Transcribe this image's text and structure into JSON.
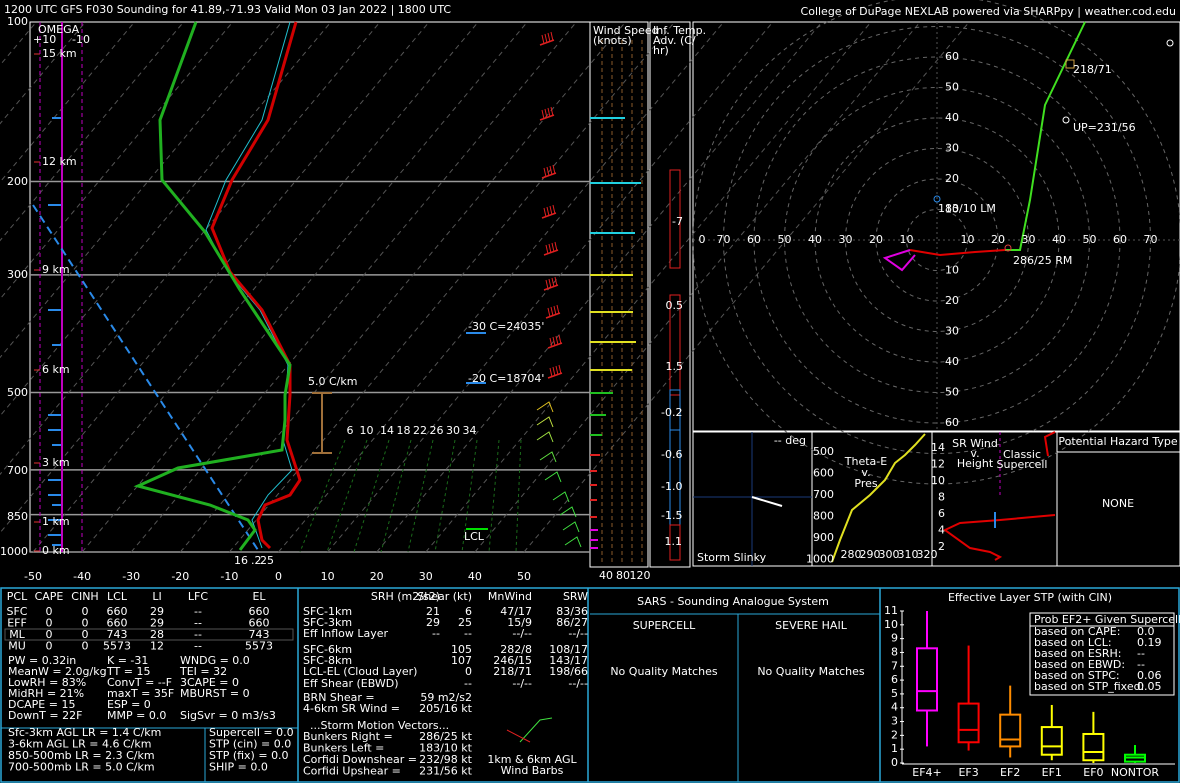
{
  "header": {
    "title": "1200 UTC GFS F030 Sounding for 41.89,-71.93 Valid  Mon 03 Jan 2022 | 1800 UTC",
    "credit": "College of DuPage NEXLAB powered via SHARPpy | weather.cod.edu"
  },
  "skewt": {
    "pressure_labels": [
      "100",
      "200",
      "300",
      "500",
      "700",
      "850",
      "1000"
    ],
    "temperature_labels": [
      "-50",
      "-40",
      "-30",
      "-20",
      "-10",
      "0",
      "10",
      "20",
      "30",
      "40",
      "50"
    ],
    "height_labels": [
      "15 km",
      "12 km",
      "9 km",
      "6 km",
      "3 km",
      "1 km",
      "0 km"
    ],
    "omega_title": "OMEGA",
    "omega_labels": [
      "+10",
      "-10"
    ],
    "lapse_rate": "5.0 C/km",
    "isotherms": [
      "-30 C=24035'",
      "-20 C=18704'"
    ],
    "mixing_ratios": [
      "6",
      "10",
      "14",
      "18",
      "22",
      "26",
      "30",
      "34"
    ],
    "lcl": "LCL",
    "surface": [
      "16",
      ".2",
      "25"
    ]
  },
  "wind_speed": {
    "title": [
      "Wind Speed",
      "(knots)"
    ],
    "ticks": [
      "40",
      "80",
      "120"
    ]
  },
  "temp_adv": {
    "title": [
      "Inf. Temp.",
      "Adv. (C/",
      "hr)"
    ],
    "labels": [
      "-7",
      "0.5",
      "1.5",
      "-0.2",
      "-0.6",
      "-1.0",
      "-1.5",
      "1.1"
    ]
  },
  "hodograph": {
    "x_labels": [
      "0",
      "70",
      "60",
      "50",
      "40",
      "30",
      "20",
      "10",
      "10",
      "20",
      "30",
      "40",
      "50",
      "60",
      "70"
    ],
    "y_labels": [
      "60",
      "50",
      "40",
      "30",
      "20",
      "10",
      "10",
      "20",
      "30",
      "40",
      "50",
      "60"
    ],
    "mean": "218/71",
    "upshear": "UP=231/56",
    "left_mover": "183/10 LM",
    "right_mover": "286/25 RM"
  },
  "slinky": {
    "deg": "-- deg",
    "title": "Storm Slinky"
  },
  "theta_e": {
    "title": [
      "Theta-E",
      "v.",
      "Pres"
    ],
    "y_labels": [
      "500",
      "600",
      "700",
      "800",
      "900",
      "1000"
    ],
    "x_labels": [
      "280",
      "290",
      "300",
      "310",
      "320"
    ]
  },
  "sr_wind": {
    "title": [
      "SR Wind",
      "v.",
      "Height"
    ],
    "note": [
      "Classic",
      "Supercell"
    ],
    "y_labels": [
      "14",
      "12",
      "10",
      "8",
      "6",
      "4",
      "2"
    ]
  },
  "hazard": {
    "title": "Potential Hazard Type",
    "value": "NONE"
  },
  "parcels": {
    "columns": [
      "PCL",
      "CAPE",
      "CINH",
      "LCL",
      "LI",
      "LFC",
      "EL"
    ],
    "rows": [
      [
        "SFC",
        "0",
        "0",
        "660",
        "29",
        "--",
        "660"
      ],
      [
        "EFF",
        "0",
        "0",
        "660",
        "29",
        "--",
        "660"
      ],
      [
        "ML",
        "0",
        "0",
        "743",
        "28",
        "--",
        "743"
      ],
      [
        "MU",
        "0",
        "0",
        "5573",
        "12",
        "--",
        "5573"
      ]
    ]
  },
  "indices": {
    "col1": [
      "PW = 0.32in",
      "MeanW = 2.0g/kg",
      "LowRH = 83%",
      "MidRH = 21%",
      "DCAPE = 15",
      "DownT = 22F"
    ],
    "col2": [
      "K = -31",
      "TT = 15",
      "ConvT = --F",
      "maxT = 35F",
      "ESP = 0",
      "MMP = 0.0"
    ],
    "col3": [
      "WNDG = 0.0",
      "TEI = 32",
      "3CAPE = 0",
      "MBURST = 0",
      "SigSvr = 0 m3/s3"
    ],
    "lapse_rates": [
      "Sfc-3km AGL LR = 1.4 C/km",
      "3-6km AGL LR = 4.6 C/km",
      "850-500mb LR = 2.3 C/km",
      "700-500mb LR = 5.0 C/km"
    ],
    "composites": [
      "Supercell = 0.0",
      "STP (cin) = 0.0",
      "STP (fix) = 0.0",
      "SHIP = 0.0"
    ]
  },
  "kinematics": {
    "columns": [
      "SRH (m2/s2)",
      "Shear (kt)",
      "MnWind",
      "SRW"
    ],
    "rows": [
      [
        "SFC-1km",
        "21",
        "6",
        "47/17",
        "83/36"
      ],
      [
        "SFC-3km",
        "29",
        "25",
        "15/9",
        "86/27"
      ],
      [
        "Eff Inflow Layer",
        "--",
        "--",
        "--/--",
        "--/--"
      ],
      [
        "SFC-6km",
        "105",
        "282/8",
        "108/17"
      ],
      [
        "SFC-8km",
        "107",
        "246/15",
        "143/17"
      ],
      [
        "LCL-EL (Cloud Layer)",
        "0",
        "218/71",
        "198/66"
      ],
      [
        "Eff Shear (EBWD)",
        "--",
        "--/--",
        "--/--"
      ]
    ],
    "extra": [
      [
        "BRN Shear =",
        "59 m2/s2"
      ],
      [
        "4-6km SR Wind =",
        "205/16 kt"
      ]
    ],
    "motion_title": "...Storm Motion Vectors...",
    "motion": [
      [
        "Bunkers Right =",
        "286/25 kt"
      ],
      [
        "Bunkers Left =",
        "183/10 kt"
      ],
      [
        "Corfidi Downshear =",
        "232/98 kt"
      ],
      [
        "Corfidi Upshear =",
        "231/56 kt"
      ]
    ],
    "barbs_label": [
      "1km & 6km AGL",
      "Wind Barbs"
    ]
  },
  "sars": {
    "title": "SARS - Sounding Analogue System",
    "supercell": "SUPERCELL",
    "hail": "SEVERE HAIL",
    "supercell_result": "No Quality Matches",
    "hail_result": "No Quality Matches"
  },
  "stp": {
    "title": "Effective Layer STP (with CIN)",
    "ylim": [
      0,
      11
    ],
    "yticks": [
      0,
      1,
      2,
      3,
      4,
      5,
      6,
      7,
      8,
      9,
      10,
      11
    ],
    "categories": [
      "EF4+",
      "EF3",
      "EF2",
      "EF1",
      "EF0",
      "NONTOR"
    ],
    "colors": [
      "#ff00ff",
      "#ff0000",
      "#ff8c00",
      "#ffff00",
      "#ffff00",
      "#00ff00"
    ],
    "boxes": [
      {
        "min": 1.2,
        "q1": 3.8,
        "median": 5.2,
        "q3": 8.3,
        "max": 11
      },
      {
        "min": 0.9,
        "q1": 1.5,
        "median": 2.4,
        "q3": 4.3,
        "max": 8.5
      },
      {
        "min": 0.4,
        "q1": 1.2,
        "median": 1.7,
        "q3": 3.5,
        "max": 5.6
      },
      {
        "min": 0.2,
        "q1": 0.6,
        "median": 1.2,
        "q3": 2.6,
        "max": 4.2
      },
      {
        "min": 0,
        "q1": 0.2,
        "median": 0.8,
        "q3": 2.1,
        "max": 3.7
      },
      {
        "min": 0,
        "q1": 0.1,
        "median": 0.4,
        "q3": 0.6,
        "max": 1.3
      }
    ],
    "prob_title": "Prob EF2+ Given Supercell",
    "prob_rows": [
      [
        "based on CAPE:",
        "0.0"
      ],
      [
        "based on LCL:",
        "0.19"
      ],
      [
        "based on ESRH:",
        "--"
      ],
      [
        "based on EBWD:",
        "--"
      ],
      [
        "based on STPC:",
        "0.06"
      ],
      [
        "based on STP_fixed:",
        "0.05"
      ]
    ]
  }
}
